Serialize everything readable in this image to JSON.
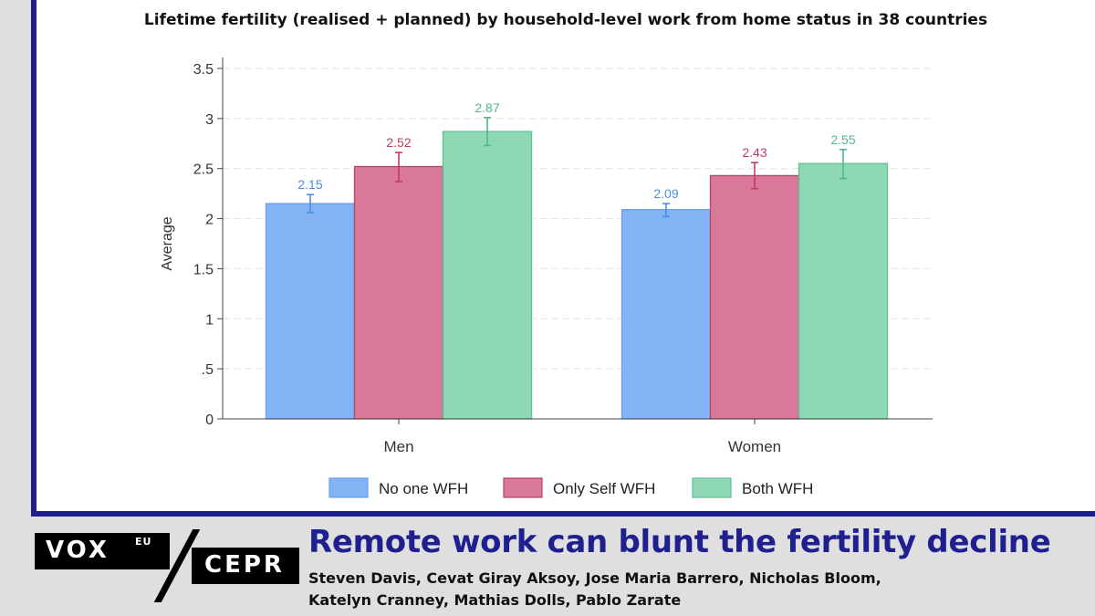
{
  "chart_data": {
    "type": "bar",
    "title": "Lifetime fertility (realised + planned) by household-level work from home status in 38 countries",
    "ylabel": "Average",
    "xlabel": "",
    "categories": [
      "Men",
      "Women"
    ],
    "ylim": [
      0,
      3.5
    ],
    "yticks": [
      0,
      0.5,
      1,
      1.5,
      2,
      2.5,
      3,
      3.5
    ],
    "ytick_labels": [
      "0",
      ".5",
      "1",
      "1.5",
      "2",
      "2.5",
      "3",
      "3.5"
    ],
    "grid": true,
    "legend_position": "bottom",
    "series": [
      {
        "name": "No one WFH",
        "values": [
          2.15,
          2.09
        ],
        "value_labels": [
          "2.15",
          "2.09"
        ],
        "ci_low": [
          2.06,
          2.02
        ],
        "ci_high": [
          2.24,
          2.15
        ],
        "color": "#82b3f5",
        "edge": "#6a9ee8",
        "label_color": "#4a8de0"
      },
      {
        "name": "Only Self WFH",
        "values": [
          2.52,
          2.43
        ],
        "value_labels": [
          "2.52",
          "2.43"
        ],
        "ci_low": [
          2.37,
          2.3
        ],
        "ci_high": [
          2.66,
          2.56
        ],
        "color": "#d9789a",
        "edge": "#b4465e",
        "label_color": "#c63a5c"
      },
      {
        "name": "Both WFH",
        "values": [
          2.87,
          2.55
        ],
        "value_labels": [
          "2.87",
          "2.55"
        ],
        "ci_low": [
          2.73,
          2.4
        ],
        "ci_high": [
          3.01,
          2.69
        ],
        "color": "#8fd8b5",
        "edge": "#5fc08f",
        "label_color": "#4fb987"
      }
    ]
  },
  "banner": {
    "headline": "Remote work can blunt the fertility decline",
    "authors_line1": "Steven Davis, Cevat Giray Aksoy, Jose Maria Barrero, Nicholas Bloom,",
    "authors_line2": "Katelyn Cranney, Mathias Dolls, Pablo Zarate",
    "logo_vox": "VOX",
    "logo_eu": "EU",
    "logo_cepr": "CEPR",
    "brand_color": "#1f1f8f"
  }
}
